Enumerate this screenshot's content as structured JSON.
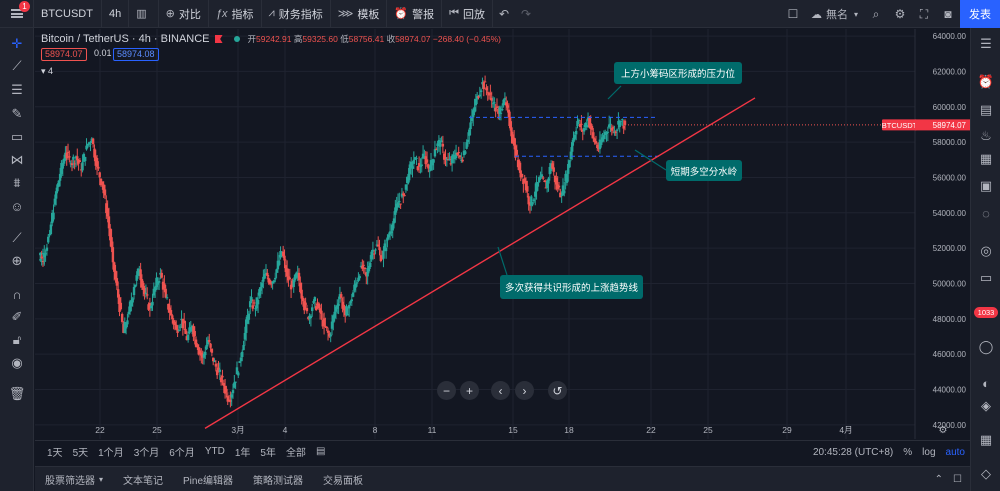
{
  "toolbar": {
    "menu_badge": "1",
    "symbol": "BTCUSDT",
    "interval": "4h",
    "compare_label": "对比",
    "indicators_label": "指标",
    "financials_label": "财务指标",
    "templates_label": "模板",
    "alert_label": "警报",
    "replay_label": "回放",
    "layout_name": "無名",
    "publish_label": "发表"
  },
  "legend": {
    "title": "Bitcoin / TetherUS · 4h · BINANCE",
    "open_label": "开",
    "open": "59242.91",
    "high_label": "高",
    "high": "59325.60",
    "low_label": "低",
    "low": "58756.41",
    "close_label": "收",
    "close": "58974.07",
    "change": "−268.40 (−0.45%)",
    "sell_price": "58974.07",
    "spread": "0.01",
    "buy_price": "58974.08",
    "collapse_count": "4"
  },
  "annotations": {
    "resistance": "上方小筹码区形成的压力位",
    "watershed": "短期多空分水岭",
    "trendline": "多次获得共识形成的上涨趋势线"
  },
  "price_label": {
    "symbol": "BTCUSDT",
    "price": "58974.07"
  },
  "timeframes": [
    "1天",
    "5天",
    "1个月",
    "3个月",
    "6个月",
    "YTD",
    "1年",
    "5年",
    "全部"
  ],
  "time_status": {
    "clock": "20:45:28 (UTC+8)",
    "percent": "%",
    "log": "log",
    "auto": "auto"
  },
  "bottom_tabs": [
    "股票筛选器",
    "文本笔记",
    "Pine编辑器",
    "策略测试器",
    "交易面板"
  ],
  "right_badge": "1033",
  "colors": {
    "up": "#26a69a",
    "down": "#ef5350",
    "trendline": "#f23645",
    "dashed": "#2962ff",
    "callout": "#006b6b",
    "background": "#131722"
  },
  "chart_data": {
    "type": "candlestick",
    "symbol": "BTCUSDT",
    "exchange": "BINANCE",
    "interval": "4h",
    "y_axis": [
      "64000.00",
      "62000.00",
      "60000.00",
      "58000.00",
      "56000.00",
      "54000.00",
      "52000.00",
      "50000.00",
      "48000.00",
      "46000.00",
      "44000.00",
      "42000.00"
    ],
    "ylim": [
      41200,
      64400
    ],
    "x_axis": [
      "22",
      "25",
      "3月",
      "4",
      "8",
      "11",
      "15",
      "18",
      "22",
      "25",
      "29",
      "4月"
    ],
    "current_price": 58974.07,
    "resistance_level": 59400,
    "support_level": 57200,
    "trendline": {
      "from": [
        "Feb 26",
        41800
      ],
      "to": [
        "Mar 31",
        60500
      ]
    },
    "close_path": [
      51600,
      51700,
      52800,
      54800,
      56200,
      57400,
      56800,
      57200,
      56400,
      57800,
      58200,
      56600,
      55600,
      53800,
      51200,
      49200,
      47200,
      48400,
      49800,
      50800,
      49400,
      48600,
      49800,
      50600,
      49200,
      48200,
      47400,
      48000,
      46800,
      47600,
      46400,
      45800,
      46800,
      45600,
      45000,
      44200,
      43400,
      44400,
      45600,
      47200,
      49000,
      48600,
      49800,
      50600,
      50000,
      50800,
      51800,
      50400,
      49800,
      50600,
      49000,
      48000,
      49000,
      48600,
      47600,
      47000,
      48400,
      49400,
      48200,
      49000,
      50000,
      51000,
      50400,
      51800,
      52200,
      51400,
      52600,
      53400,
      54600,
      55000,
      56200,
      57000,
      56600,
      57200,
      56400,
      57600,
      58000,
      57000,
      56800,
      57400,
      57000,
      58000,
      59400,
      60600,
      61400,
      60800,
      60200,
      59600,
      60400,
      59400,
      57800,
      56400,
      55800,
      54400,
      55200,
      56000,
      55400,
      56800,
      55600,
      55000,
      56200,
      58000,
      59200,
      58600,
      59400,
      58200,
      57600,
      58400,
      59000,
      58600,
      59200,
      58974
    ]
  }
}
